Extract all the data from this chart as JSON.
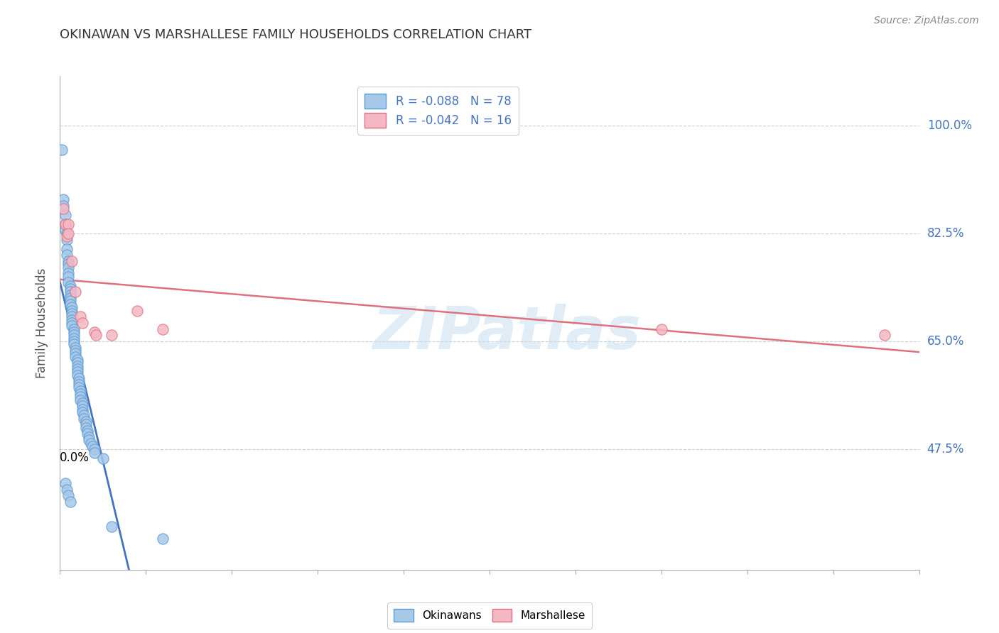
{
  "title": "OKINAWAN VS MARSHALLESE FAMILY HOUSEHOLDS CORRELATION CHART",
  "source": "Source: ZipAtlas.com",
  "ylabel": "Family Households",
  "ytick_values": [
    0.475,
    0.65,
    0.825,
    1.0
  ],
  "ytick_labels": [
    "47.5%",
    "65.0%",
    "82.5%",
    "100.0%"
  ],
  "xlim": [
    0.0,
    0.5
  ],
  "ylim": [
    0.28,
    1.08
  ],
  "okinawan_color": "#a8c8e8",
  "okinawan_edge_color": "#5b9bd5",
  "marshallese_color": "#f4b8c4",
  "marshallese_edge_color": "#e07080",
  "okinawan_line_color": "#4472c4",
  "marshallese_line_color": "#e07080",
  "watermark_color": "#c8dff0",
  "background_color": "#ffffff",
  "grid_color": "#cccccc",
  "title_color": "#333333",
  "source_color": "#888888",
  "ytick_color": "#4472c4",
  "legend_text_color": "#4472c4",
  "okinawan_x": [
    0.001,
    0.002,
    0.002,
    0.003,
    0.003,
    0.003,
    0.004,
    0.004,
    0.004,
    0.004,
    0.005,
    0.005,
    0.005,
    0.005,
    0.005,
    0.005,
    0.006,
    0.006,
    0.006,
    0.006,
    0.006,
    0.006,
    0.006,
    0.007,
    0.007,
    0.007,
    0.007,
    0.007,
    0.007,
    0.007,
    0.008,
    0.008,
    0.008,
    0.008,
    0.008,
    0.008,
    0.009,
    0.009,
    0.009,
    0.009,
    0.01,
    0.01,
    0.01,
    0.01,
    0.01,
    0.01,
    0.011,
    0.011,
    0.011,
    0.011,
    0.012,
    0.012,
    0.012,
    0.012,
    0.013,
    0.013,
    0.013,
    0.013,
    0.014,
    0.014,
    0.015,
    0.015,
    0.015,
    0.016,
    0.016,
    0.017,
    0.017,
    0.018,
    0.019,
    0.02,
    0.02,
    0.025,
    0.003,
    0.004,
    0.005,
    0.006,
    0.03,
    0.06
  ],
  "okinawan_y": [
    0.96,
    0.88,
    0.87,
    0.855,
    0.84,
    0.83,
    0.825,
    0.815,
    0.8,
    0.79,
    0.78,
    0.775,
    0.77,
    0.76,
    0.755,
    0.745,
    0.74,
    0.735,
    0.73,
    0.725,
    0.72,
    0.715,
    0.71,
    0.705,
    0.7,
    0.695,
    0.69,
    0.685,
    0.68,
    0.675,
    0.67,
    0.665,
    0.66,
    0.655,
    0.65,
    0.645,
    0.64,
    0.635,
    0.63,
    0.625,
    0.62,
    0.615,
    0.61,
    0.605,
    0.6,
    0.595,
    0.59,
    0.585,
    0.58,
    0.575,
    0.57,
    0.565,
    0.56,
    0.555,
    0.55,
    0.545,
    0.54,
    0.535,
    0.53,
    0.525,
    0.52,
    0.515,
    0.51,
    0.505,
    0.5,
    0.495,
    0.49,
    0.485,
    0.48,
    0.475,
    0.47,
    0.46,
    0.42,
    0.41,
    0.4,
    0.39,
    0.35,
    0.33
  ],
  "marshallese_x": [
    0.002,
    0.003,
    0.004,
    0.005,
    0.005,
    0.007,
    0.009,
    0.012,
    0.013,
    0.02,
    0.021,
    0.03,
    0.045,
    0.06,
    0.35,
    0.48
  ],
  "marshallese_y": [
    0.865,
    0.84,
    0.82,
    0.84,
    0.825,
    0.78,
    0.73,
    0.69,
    0.68,
    0.665,
    0.66,
    0.66,
    0.7,
    0.67,
    0.67,
    0.66
  ],
  "legend1_label": "R = -0.088   N = 78",
  "legend2_label": "R = -0.042   N = 16",
  "bottom_legend1": "Okinawans",
  "bottom_legend2": "Marshallese"
}
